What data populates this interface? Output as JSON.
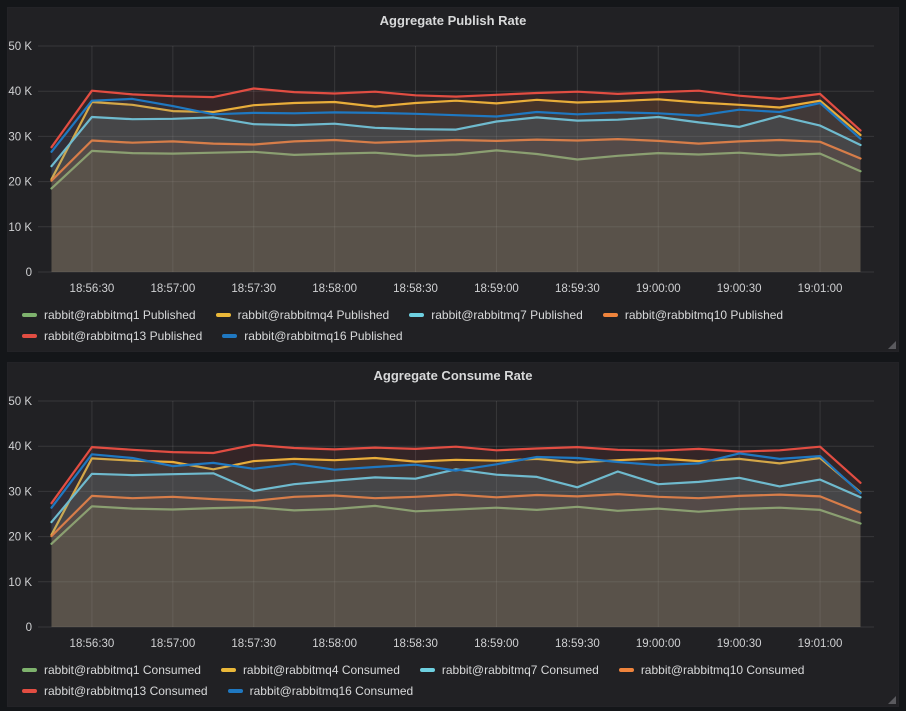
{
  "page": {
    "background_color": "#141619",
    "panel_background_color": "#212124",
    "text_color": "#d8d9da",
    "grid_color": "rgba(255,255,255,0.10)"
  },
  "chart_data": [
    {
      "type": "area",
      "title": "Aggregate Publish Rate",
      "xlabel": "",
      "ylabel": "",
      "ylim": [
        0,
        50
      ],
      "values_unit": "thousands of messages",
      "grid": true,
      "legend_position": "bottom",
      "y_tick_values": [
        0,
        10,
        20,
        30,
        40,
        50
      ],
      "y_ticks": [
        "0",
        "10 K",
        "20 K",
        "30 K",
        "40 K",
        "50 K"
      ],
      "x_ticks": [
        "18:56:30",
        "18:57:00",
        "18:57:30",
        "18:58:00",
        "18:58:30",
        "18:59:00",
        "18:59:30",
        "19:00:00",
        "19:00:30",
        "19:01:00"
      ],
      "x_tick_offsets_s": [
        20,
        50,
        80,
        110,
        140,
        170,
        200,
        230,
        260,
        290
      ],
      "x_point_offsets_s": [
        5,
        20,
        35,
        50,
        65,
        80,
        95,
        110,
        125,
        140,
        155,
        170,
        185,
        200,
        215,
        230,
        245,
        260,
        275,
        290,
        305
      ],
      "x_span_s": 310,
      "series": [
        {
          "name": "rabbit@rabbitmq1 Published",
          "color": "#7EB26D",
          "values": [
            18.5,
            26.8,
            26.3,
            26.2,
            26.4,
            26.6,
            25.9,
            26.2,
            26.4,
            25.7,
            26.0,
            26.9,
            26.1,
            24.9,
            25.7,
            26.3,
            26.0,
            26.4,
            25.8,
            26.2,
            22.3
          ]
        },
        {
          "name": "rabbit@rabbitmq4 Published",
          "color": "#EAB839",
          "values": [
            20.5,
            37.6,
            37.0,
            35.6,
            35.4,
            36.9,
            37.4,
            37.6,
            36.6,
            37.4,
            37.9,
            37.3,
            38.1,
            37.5,
            37.8,
            38.2,
            37.5,
            37.0,
            36.4,
            37.9,
            30.3
          ]
        },
        {
          "name": "rabbit@rabbitmq7 Published",
          "color": "#6ED0E0",
          "values": [
            23.4,
            34.3,
            33.8,
            33.9,
            34.2,
            32.7,
            32.5,
            32.8,
            31.9,
            31.6,
            31.5,
            33.3,
            34.2,
            33.5,
            33.7,
            34.3,
            33.1,
            32.1,
            34.5,
            32.4,
            28.1
          ]
        },
        {
          "name": "rabbit@rabbitmq10 Published",
          "color": "#EF843C",
          "values": [
            20.2,
            29.1,
            28.6,
            28.9,
            28.4,
            28.2,
            28.9,
            29.2,
            28.6,
            28.9,
            29.2,
            29.0,
            29.3,
            29.1,
            29.4,
            29.0,
            28.4,
            28.9,
            29.2,
            28.8,
            25.1
          ]
        },
        {
          "name": "rabbit@rabbitmq13 Published",
          "color": "#E24D42",
          "values": [
            27.6,
            40.1,
            39.3,
            38.9,
            38.7,
            40.6,
            39.8,
            39.5,
            39.9,
            39.1,
            38.8,
            39.2,
            39.6,
            39.9,
            39.4,
            39.8,
            40.1,
            39.0,
            38.3,
            39.4,
            31.3
          ]
        },
        {
          "name": "rabbit@rabbitmq16 Published",
          "color": "#1F78C1",
          "values": [
            26.6,
            37.9,
            38.3,
            36.7,
            34.9,
            35.2,
            35.1,
            35.3,
            35.2,
            35.0,
            34.7,
            34.4,
            35.4,
            34.9,
            35.3,
            35.1,
            34.6,
            35.9,
            35.4,
            37.4,
            29.5
          ]
        }
      ]
    },
    {
      "type": "area",
      "title": "Aggregate Consume Rate",
      "xlabel": "",
      "ylabel": "",
      "ylim": [
        0,
        50
      ],
      "values_unit": "thousands of messages",
      "grid": true,
      "legend_position": "bottom",
      "y_tick_values": [
        0,
        10,
        20,
        30,
        40,
        50
      ],
      "y_ticks": [
        "0",
        "10 K",
        "20 K",
        "30 K",
        "40 K",
        "50 K"
      ],
      "x_ticks": [
        "18:56:30",
        "18:57:00",
        "18:57:30",
        "18:58:00",
        "18:58:30",
        "18:59:00",
        "18:59:30",
        "19:00:00",
        "19:00:30",
        "19:01:00"
      ],
      "x_tick_offsets_s": [
        20,
        50,
        80,
        110,
        140,
        170,
        200,
        230,
        260,
        290
      ],
      "x_point_offsets_s": [
        5,
        20,
        35,
        50,
        65,
        80,
        95,
        110,
        125,
        140,
        155,
        170,
        185,
        200,
        215,
        230,
        245,
        260,
        275,
        290,
        305
      ],
      "x_span_s": 310,
      "series": [
        {
          "name": "rabbit@rabbitmq1 Consumed",
          "color": "#7EB26D",
          "values": [
            18.4,
            26.7,
            26.2,
            26.0,
            26.3,
            26.5,
            25.8,
            26.1,
            26.8,
            25.6,
            26.0,
            26.4,
            25.9,
            26.6,
            25.7,
            26.2,
            25.5,
            26.1,
            26.4,
            25.9,
            22.9
          ]
        },
        {
          "name": "rabbit@rabbitmq4 Consumed",
          "color": "#EAB839",
          "values": [
            20.4,
            37.3,
            36.8,
            36.5,
            34.9,
            36.7,
            37.2,
            36.9,
            37.4,
            36.6,
            37.0,
            36.8,
            37.2,
            36.4,
            36.9,
            37.3,
            36.7,
            37.2,
            36.2,
            37.4,
            29.8
          ]
        },
        {
          "name": "rabbit@rabbitmq7 Consumed",
          "color": "#6ED0E0",
          "values": [
            23.2,
            33.9,
            33.6,
            33.8,
            34.0,
            30.1,
            31.6,
            32.4,
            33.1,
            32.8,
            34.9,
            33.7,
            33.2,
            30.9,
            34.4,
            31.6,
            32.1,
            33.0,
            31.1,
            32.6,
            28.7
          ]
        },
        {
          "name": "rabbit@rabbitmq10 Consumed",
          "color": "#EF843C",
          "values": [
            20.1,
            29.0,
            28.5,
            28.8,
            28.3,
            27.9,
            28.8,
            29.1,
            28.5,
            28.8,
            29.3,
            28.7,
            29.2,
            28.9,
            29.4,
            28.8,
            28.5,
            29.0,
            29.3,
            28.9,
            25.3
          ]
        },
        {
          "name": "rabbit@rabbitmq13 Consumed",
          "color": "#E24D42",
          "values": [
            27.4,
            39.8,
            39.2,
            38.7,
            38.5,
            40.3,
            39.6,
            39.3,
            39.7,
            39.4,
            39.9,
            39.1,
            39.5,
            39.8,
            39.2,
            39.0,
            39.4,
            38.8,
            39.1,
            39.9,
            31.9
          ]
        },
        {
          "name": "rabbit@rabbitmq16 Consumed",
          "color": "#1F78C1",
          "values": [
            26.4,
            38.2,
            37.4,
            35.6,
            36.3,
            35.0,
            36.1,
            34.8,
            35.4,
            35.9,
            34.6,
            36.0,
            37.6,
            37.4,
            36.5,
            35.8,
            36.2,
            38.4,
            37.2,
            37.8,
            29.6
          ]
        }
      ]
    }
  ]
}
